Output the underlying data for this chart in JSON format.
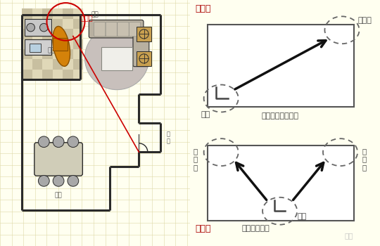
{
  "bg_color": "#fffff0",
  "floor_bg": "#f5f0d0",
  "wall_color": "#2a2a2a",
  "grid_color": "#ddd8a8",
  "kitchen_tile1": "#c8bfa0",
  "kitchen_tile2": "#e0d8b8",
  "fig1_title": "图一：",
  "fig2_title": "图二：",
  "fig1_subtitle": "户门在房间一角时",
  "fig2_subtitle": "户门在中间时",
  "mingcaiwei_label": "明财位",
  "dongwei_label": "动位",
  "dashed_circle_color": "#666666",
  "arrow_color": "#111111",
  "label_color": "#444444",
  "red_circle_color": "#cc0000",
  "red_line_color": "#cc0000",
  "mingcaiwei_text_color": "#cc0000",
  "room_label_color": "#555555",
  "orange_color": "#d4820a",
  "sofa_color": "#b8b0a0",
  "rug_color": "#c8c0bc",
  "table_color": "#d0cdb8",
  "chair_color": "#a8a8a8",
  "box_color": "#c8a050",
  "watermark_color": "#bbbbbb"
}
